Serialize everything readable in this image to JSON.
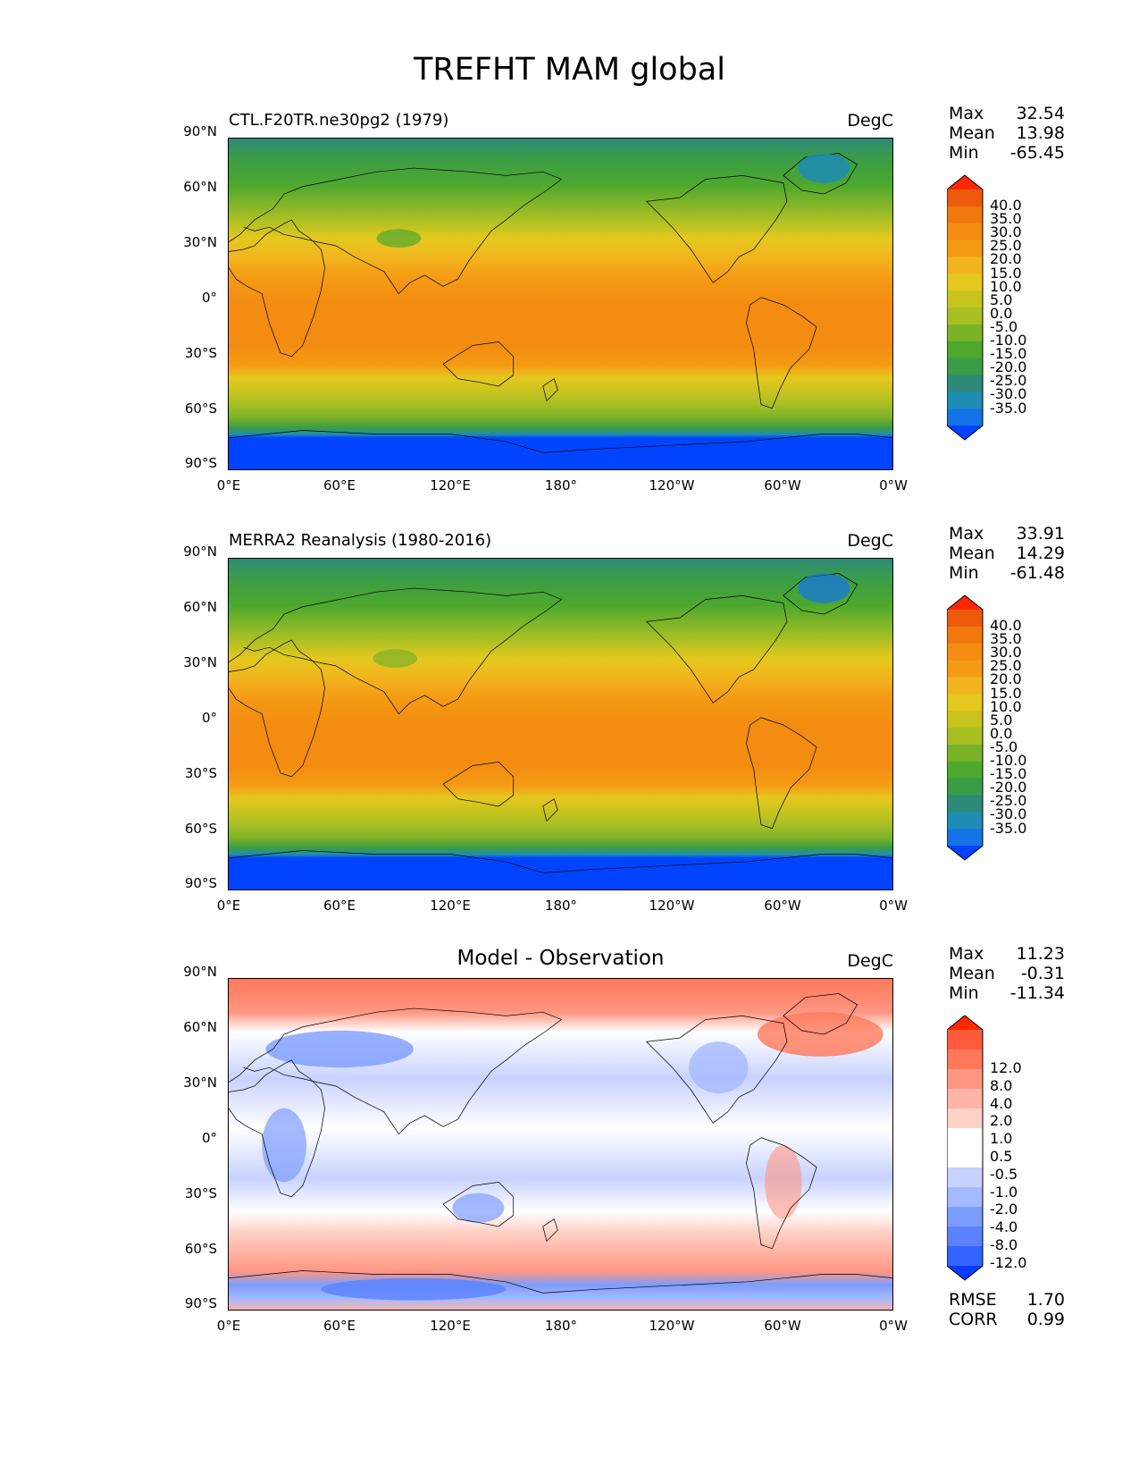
{
  "figure": {
    "title": "TREFHT MAM global",
    "units": "DegC",
    "lat_labels": [
      "90°N",
      "60°N",
      "30°N",
      "0°",
      "30°S",
      "60°S",
      "90°S"
    ],
    "lon_labels": [
      "0°E",
      "60°E",
      "120°E",
      "180°",
      "120°W",
      "60°W",
      "0°W"
    ],
    "colors": {
      "temperature_scale": [
        "#0044ff",
        "#1473e6",
        "#1e8cb4",
        "#2d8a78",
        "#3a9c46",
        "#4ea82e",
        "#7ab228",
        "#a8bf24",
        "#c8c41e",
        "#e4c81e",
        "#f2b41e",
        "#f59a14",
        "#f38c10",
        "#f0780e",
        "#ee5a0c",
        "#ff2800"
      ],
      "difference_scale": [
        "#0a3cff",
        "#3264ff",
        "#5a82ff",
        "#7d9cff",
        "#a5b9ff",
        "#c8d2ff",
        "#ffffff",
        "#ffffff",
        "#ffd2c8",
        "#ffb4a5",
        "#ff9682",
        "#ff785a",
        "#ff5a3c",
        "#ff2800"
      ]
    }
  },
  "panels": [
    {
      "name": "model",
      "title": "CTL.F20TR.ne30pg2 (1979)",
      "stats": {
        "max_label": "Max",
        "max": "32.54",
        "mean_label": "Mean",
        "mean": "13.98",
        "min_label": "Min",
        "min": "-65.45"
      },
      "colorbar_labels": [
        "40.0",
        "35.0",
        "30.0",
        "25.0",
        "20.0",
        "15.0",
        "10.0",
        "5.0",
        "0.0",
        "-5.0",
        "-10.0",
        "-15.0",
        "-20.0",
        "-25.0",
        "-30.0",
        "-35.0"
      ]
    },
    {
      "name": "observation",
      "title": "MERRA2 Reanalysis (1980-2016)",
      "stats": {
        "max_label": "Max",
        "max": "33.91",
        "mean_label": "Mean",
        "mean": "14.29",
        "min_label": "Min",
        "min": "-61.48"
      },
      "colorbar_labels": [
        "40.0",
        "35.0",
        "30.0",
        "25.0",
        "20.0",
        "15.0",
        "10.0",
        "5.0",
        "0.0",
        "-5.0",
        "-10.0",
        "-15.0",
        "-20.0",
        "-25.0",
        "-30.0",
        "-35.0"
      ]
    },
    {
      "name": "difference",
      "title": "Model - Observation",
      "stats": {
        "max_label": "Max",
        "max": "11.23",
        "mean_label": "Mean",
        "mean": "-0.31",
        "min_label": "Min",
        "min": "-11.34"
      },
      "colorbar_labels": [
        "12.0",
        "8.0",
        "4.0",
        "2.0",
        "1.0",
        "0.5",
        "-0.5",
        "-1.0",
        "-2.0",
        "-4.0",
        "-8.0",
        "-12.0"
      ],
      "rmse_label": "RMSE",
      "rmse": "1.70",
      "corr_label": "CORR",
      "corr": "0.99"
    }
  ]
}
